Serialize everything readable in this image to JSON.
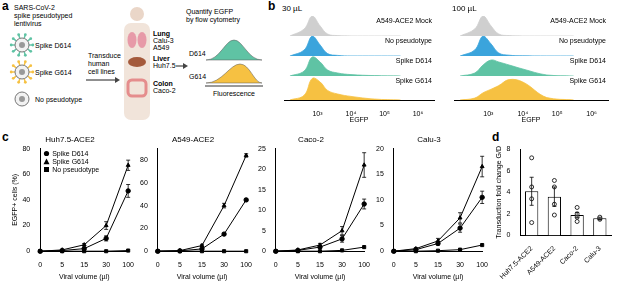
{
  "panel_labels": [
    "a",
    "b",
    "c",
    "d"
  ],
  "diagram": {
    "title": [
      "SARS-CoV-2",
      "spike pseudotyped",
      "lentivirus"
    ],
    "viruses": [
      {
        "name": "Spike D614",
        "color": "#5fc3a4"
      },
      {
        "name": "Spike G614",
        "color": "#f6c142"
      },
      {
        "name": "No pseudotype",
        "color": null
      }
    ],
    "step": [
      "Transduce",
      "human",
      "cell lines"
    ],
    "organs": [
      {
        "name": "Lung",
        "cell_lines": [
          "Calu-3",
          "A549"
        ]
      },
      {
        "name": "Liver",
        "cell_lines": [
          "Huh7.5"
        ]
      },
      {
        "name": "Colon",
        "cell_lines": [
          "Caco-2"
        ]
      }
    ],
    "readout": [
      "Quantify EGFP",
      "by flow cytometry"
    ],
    "histogram": {
      "series": [
        {
          "name": "D614",
          "color": "#5fc3a4"
        },
        {
          "name": "G614",
          "color": "#f6c142"
        }
      ],
      "xlabel": "Fluorescence"
    }
  },
  "chart_data": [
    {
      "type": "ridgeline",
      "title": "30 µL",
      "xlabel": "EGFP",
      "log": "x",
      "x": [
        150,
        400,
        700,
        1200,
        2000,
        4000,
        10000,
        50000,
        300000
      ],
      "xlim": [
        100,
        3000000
      ],
      "xticks": [
        {
          "value": 1000,
          "label": "10³"
        },
        {
          "value": 10000,
          "label": "10⁴"
        },
        {
          "value": 100000,
          "label": "10⁵"
        },
        {
          "value": 1000000,
          "label": "10⁶"
        }
      ],
      "ylim": [
        0,
        1
      ],
      "tick_labels": "x",
      "grid": false,
      "series": [
        {
          "name": "A549-ACE2 Mock",
          "color": "#cfcfcf",
          "values": [
            0,
            0.35,
            1,
            0.5,
            0.1,
            0.02,
            0,
            0,
            0
          ]
        },
        {
          "name": "No pseudotype",
          "color": "#3ba4dc",
          "values": [
            0,
            0.3,
            1,
            0.55,
            0.12,
            0.03,
            0,
            0,
            0
          ]
        },
        {
          "name": "Spike D614",
          "color": "#5fc3a4",
          "values": [
            0,
            0.25,
            0.95,
            0.7,
            0.3,
            0.15,
            0.07,
            0.02,
            0
          ]
        },
        {
          "name": "Spike G614",
          "color": "#f6c142",
          "values": [
            0,
            0.2,
            0.9,
            0.75,
            0.4,
            0.25,
            0.15,
            0.04,
            0
          ]
        }
      ]
    },
    {
      "type": "ridgeline",
      "title": "100 µL",
      "xlabel": "EGFP",
      "log": "x",
      "x": [
        150,
        400,
        700,
        1200,
        2000,
        4000,
        10000,
        50000,
        300000
      ],
      "xlim": [
        100,
        3000000
      ],
      "xticks": [
        {
          "value": 1000,
          "label": "10³"
        },
        {
          "value": 10000,
          "label": "10⁴"
        },
        {
          "value": 100000,
          "label": "10⁵"
        },
        {
          "value": 1000000,
          "label": "10⁶"
        }
      ],
      "ylim": [
        0,
        1
      ],
      "tick_labels": "x",
      "grid": false,
      "series": [
        {
          "name": "A549-ACE2 Mock",
          "color": "#cfcfcf",
          "values": [
            0,
            0.35,
            1,
            0.5,
            0.1,
            0.02,
            0,
            0,
            0
          ]
        },
        {
          "name": "No pseudotype",
          "color": "#3ba4dc",
          "values": [
            0,
            0.3,
            1,
            0.6,
            0.15,
            0.04,
            0.01,
            0,
            0
          ]
        },
        {
          "name": "Spike D614",
          "color": "#5fc3a4",
          "values": [
            0,
            0.15,
            0.55,
            0.8,
            0.7,
            0.55,
            0.35,
            0.05,
            0
          ]
        },
        {
          "name": "Spike G614",
          "color": "#f6c142",
          "values": [
            0,
            0.08,
            0.3,
            0.45,
            0.6,
            0.85,
            0.75,
            0.1,
            0
          ]
        }
      ]
    },
    {
      "type": "line",
      "title": "Huh7.5-ACE2",
      "xlabel": "Viral volume (µl)",
      "ylabel": "EGFP+ cells (%)",
      "categories": [
        0,
        5,
        15,
        30,
        100
      ],
      "ylim": [
        0,
        80
      ],
      "yticks": [
        0,
        20,
        40,
        60,
        80
      ],
      "grid": false,
      "legend": "top left",
      "series": [
        {
          "name": "Spike D614",
          "color": "#000000",
          "marker": "circle",
          "values": [
            0,
            0.5,
            2,
            10,
            47
          ],
          "errors": [
            0,
            0.2,
            0.5,
            2,
            5
          ]
        },
        {
          "name": "Spike G614",
          "color": "#000000",
          "marker": "triangle",
          "values": [
            0,
            1,
            5,
            20,
            67
          ],
          "errors": [
            0,
            0.3,
            1,
            3,
            4
          ]
        },
        {
          "name": "No pseudotype",
          "color": "#000000",
          "marker": "square",
          "values": [
            0,
            0,
            0,
            0,
            0.5
          ]
        }
      ]
    },
    {
      "type": "line",
      "title": "A549-ACE2",
      "xlabel": "Viral volume (µl)",
      "categories": [
        0,
        5,
        15,
        30,
        100
      ],
      "ylim": [
        0,
        90
      ],
      "yticks": [
        0,
        20,
        40,
        60,
        80
      ],
      "grid": false,
      "series": [
        {
          "name": "Spike D614",
          "color": "#000000",
          "marker": "circle",
          "values": [
            0,
            0.3,
            2,
            15,
            45
          ],
          "errors": [
            0,
            0.1,
            0.5,
            1,
            1
          ]
        },
        {
          "name": "Spike G614",
          "color": "#000000",
          "marker": "triangle",
          "values": [
            0,
            0.5,
            5,
            40,
            84
          ],
          "errors": [
            0,
            0.2,
            1,
            2,
            1.5
          ]
        },
        {
          "name": "No pseudotype",
          "color": "#000000",
          "marker": "square",
          "values": [
            0,
            0,
            0,
            0,
            0
          ]
        }
      ]
    },
    {
      "type": "line",
      "title": "Caco-2",
      "xlabel": "Viral volume (µl)",
      "categories": [
        0,
        5,
        15,
        30,
        100
      ],
      "ylim": [
        0,
        25
      ],
      "yticks": [
        0,
        5,
        10,
        15,
        20,
        25
      ],
      "grid": false,
      "series": [
        {
          "name": "Spike D614",
          "color": "#000000",
          "marker": "circle",
          "values": [
            0,
            0.2,
            1,
            3,
            11.5
          ],
          "errors": [
            0,
            0.1,
            0.3,
            0.8,
            1.2
          ]
        },
        {
          "name": "Spike G614",
          "color": "#000000",
          "marker": "triangle",
          "values": [
            0,
            0.3,
            1.5,
            5,
            21
          ],
          "errors": [
            0,
            0.1,
            0.4,
            1,
            3
          ]
        },
        {
          "name": "No pseudotype",
          "color": "#000000",
          "marker": "square",
          "values": [
            0,
            0,
            0,
            0.2,
            1
          ]
        }
      ]
    },
    {
      "type": "line",
      "title": "Calu-3",
      "xlabel": "Viral volume (µl)",
      "categories": [
        0,
        5,
        15,
        30,
        100
      ],
      "ylim": [
        0,
        20
      ],
      "yticks": [
        0,
        5,
        10,
        15,
        20
      ],
      "grid": false,
      "series": [
        {
          "name": "Spike D614",
          "color": "#000000",
          "marker": "circle",
          "values": [
            0,
            0.3,
            1.5,
            4.5,
            10.5
          ],
          "errors": [
            0,
            0.1,
            0.3,
            0.8,
            1.2
          ]
        },
        {
          "name": "Spike G614",
          "color": "#000000",
          "marker": "triangle",
          "values": [
            0,
            0.5,
            2,
            6.5,
            16.5
          ],
          "errors": [
            0,
            0.2,
            0.5,
            1,
            2
          ]
        },
        {
          "name": "No pseudotype",
          "color": "#000000",
          "marker": "square",
          "values": [
            0,
            0,
            0.1,
            0.3,
            1.2
          ]
        }
      ]
    },
    {
      "type": "bar",
      "ylabel": "Transduction fold change G/D",
      "categories": [
        "Huh7.5-ACE2",
        "A549-ACE2",
        "Caco-2",
        "Calu-3"
      ],
      "values": [
        4.1,
        3.6,
        1.9,
        1.6
      ],
      "errors": [
        1.3,
        0.9,
        0.25,
        0.1
      ],
      "points": [
        [
          1.2,
          3.4,
          4.5,
          7.2
        ],
        [
          1.9,
          2.9,
          4.5,
          5.1
        ],
        [
          1.3,
          1.7,
          2.0,
          2.6
        ],
        [
          1.5,
          1.6,
          1.7
        ]
      ],
      "color": "#ffffff",
      "ylim": [
        0,
        8
      ],
      "yticks": [
        0,
        2,
        4,
        6,
        8
      ],
      "grid": false
    }
  ]
}
